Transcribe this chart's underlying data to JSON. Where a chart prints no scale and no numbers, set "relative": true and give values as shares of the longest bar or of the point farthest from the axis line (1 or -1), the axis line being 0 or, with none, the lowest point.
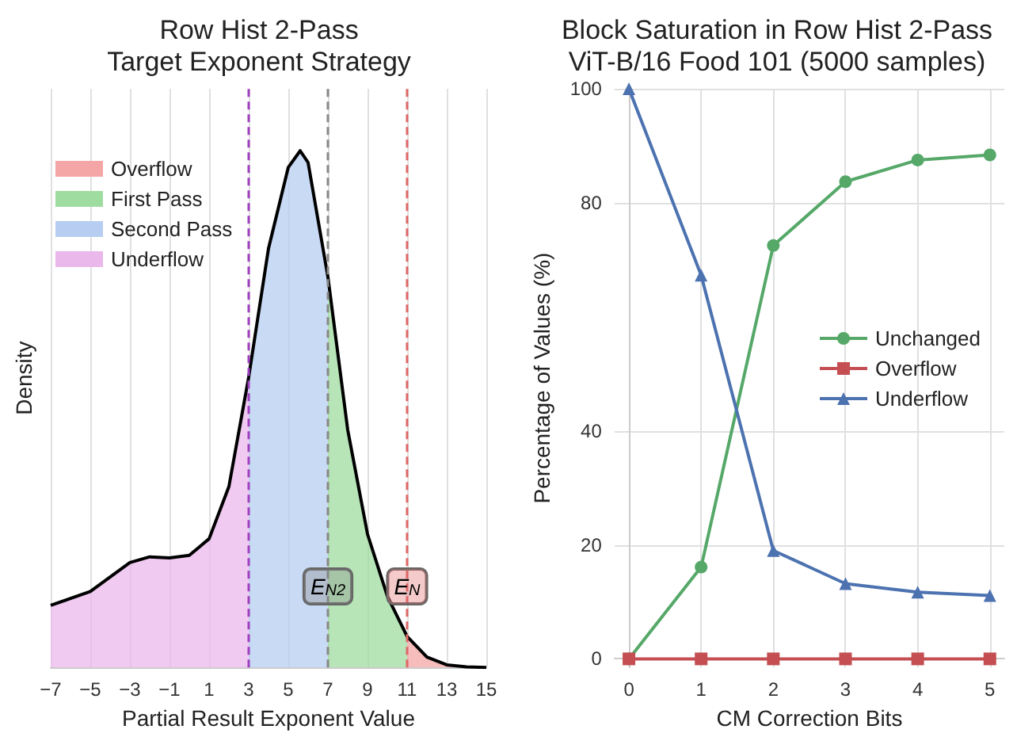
{
  "chart_data": [
    {
      "type": "area",
      "title": "Row Hist 2-Pass\nTarget Exponent Strategy",
      "xlabel": "Partial Result Exponent Value",
      "ylabel": "Density",
      "relative": true,
      "xlim": [
        -7,
        15
      ],
      "xticks": [
        -7,
        -5,
        -3,
        -1,
        1,
        3,
        5,
        7,
        9,
        11,
        13,
        15
      ],
      "grid": "x",
      "legend": "top left",
      "series": [
        {
          "name": "Overflow",
          "color": "#f4a6a6",
          "x": [
            11,
            12,
            13,
            14,
            15
          ],
          "values": [
            0.06,
            0.02,
            0.005,
            0.001,
            0
          ]
        },
        {
          "name": "First Pass",
          "color": "#9fdc9f",
          "x": [
            7,
            8,
            9,
            10,
            11
          ],
          "values": [
            0.756,
            0.46,
            0.258,
            0.138,
            0.06
          ]
        },
        {
          "name": "Second Pass",
          "color": "#b7cdf2",
          "x": [
            3,
            4,
            5,
            5.6,
            6,
            7
          ],
          "values": [
            0.562,
            0.811,
            0.968,
            1,
            0.977,
            0.756
          ]
        },
        {
          "name": "Underflow",
          "color": "#ebb8eb",
          "x": [
            -7,
            -5,
            -4,
            -3,
            -2,
            -1,
            0,
            1,
            2,
            3
          ],
          "values": [
            0.12,
            0.147,
            0.175,
            0.203,
            0.214,
            0.212,
            0.217,
            0.249,
            0.35,
            0.562
          ]
        },
        {
          "type": "line",
          "color": "#000000",
          "x": [
            -7,
            -5,
            -4,
            -3,
            -2,
            -1,
            0,
            1,
            2,
            3,
            4,
            5,
            5.6,
            6,
            7,
            8,
            9,
            10,
            11,
            12,
            13,
            14,
            15
          ],
          "values": [
            0.12,
            0.147,
            0.175,
            0.203,
            0.214,
            0.212,
            0.217,
            0.249,
            0.35,
            0.562,
            0.811,
            0.968,
            1,
            0.977,
            0.756,
            0.46,
            0.258,
            0.138,
            0.06,
            0.02,
            0.005,
            0.001,
            0
          ]
        }
      ],
      "ref_lines": [
        {
          "axis": "x",
          "value": 3,
          "color": "#a040c0",
          "line_style": "dashed"
        },
        {
          "axis": "x",
          "value": 7,
          "color": "#888888",
          "line_style": "dashed",
          "label": "E$_{N2}$"
        },
        {
          "axis": "x",
          "value": 11,
          "color": "#e06666",
          "line_style": "dashed",
          "label": "E$_{N}$"
        }
      ]
    },
    {
      "type": "line",
      "title": "Block Saturation in Row Hist 2-Pass\nViT-B/16 Food 101 (5000 samples)",
      "xlabel": "CM Correction Bits",
      "ylabel": "Percentage of Values (%)",
      "x": [
        0,
        1,
        2,
        3,
        4,
        5
      ],
      "xlim": [
        -0.2,
        5.2
      ],
      "xticks": [
        0,
        1,
        2,
        3,
        4,
        5
      ],
      "ylim": [
        -1.5,
        100
      ],
      "yticks": [
        0,
        20,
        40,
        80,
        100
      ],
      "grid": true,
      "legend": "right",
      "series": [
        {
          "name": "Unchanged",
          "color": "#55a868",
          "marker": "circle",
          "values": [
            0,
            16.1,
            72.5,
            83.7,
            87.5,
            88.4
          ]
        },
        {
          "name": "Overflow",
          "color": "#c44e52",
          "marker": "square",
          "values": [
            0,
            0,
            0,
            0,
            0,
            0
          ]
        },
        {
          "name": "Underflow",
          "color": "#4c72b0",
          "marker": "triangle",
          "values": [
            100,
            67.3,
            19.0,
            13.2,
            11.7,
            11.1
          ]
        }
      ]
    }
  ]
}
